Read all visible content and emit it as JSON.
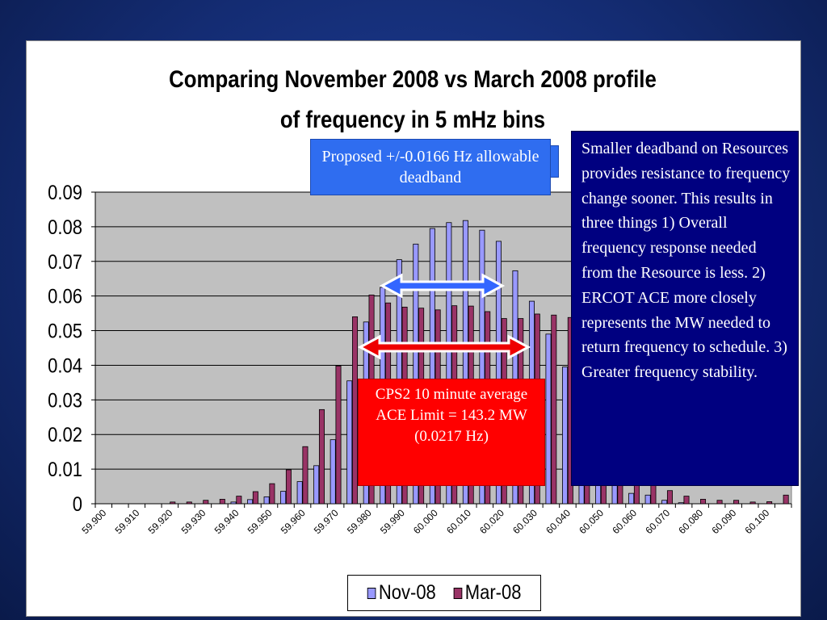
{
  "colors": {
    "nov": "#9999ff",
    "mar": "#993366",
    "plot_bg": "#c0c0c0",
    "blue_box": "#2f6df0",
    "red_box": "#ff0000",
    "navy_box": "#000080"
  },
  "chart_data": {
    "type": "bar",
    "title": "Comparing November 2008 vs March 2008 profile of frequency in 5 mHz bins",
    "title_lines": [
      "Comparing November 2008 vs March 2008 profile",
      "of frequency in 5 mHz bins"
    ],
    "xlabel": "",
    "ylabel": "",
    "ylim": [
      0,
      0.09
    ],
    "yticks": [
      "0",
      "0.01",
      "0.02",
      "0.03",
      "0.04",
      "0.05",
      "0.06",
      "0.07",
      "0.08",
      "0.09"
    ],
    "grid": true,
    "legend_position": "bottom",
    "x_tick_labels": [
      "59.900",
      "59.910",
      "59.920",
      "59.930",
      "59.940",
      "59.950",
      "59.960",
      "59.970",
      "59.980",
      "59.990",
      "60.000",
      "60.010",
      "60.020",
      "60.030",
      "60.040",
      "60.050",
      "60.060",
      "60.070",
      "60.080",
      "60.090",
      "60.100"
    ],
    "categories": [
      "59.900",
      "59.905",
      "59.910",
      "59.915",
      "59.920",
      "59.925",
      "59.930",
      "59.935",
      "59.940",
      "59.945",
      "59.950",
      "59.955",
      "59.960",
      "59.965",
      "59.970",
      "59.975",
      "59.980",
      "59.985",
      "59.990",
      "59.995",
      "60.000",
      "60.005",
      "60.010",
      "60.015",
      "60.020",
      "60.025",
      "60.030",
      "60.035",
      "60.040",
      "60.045",
      "60.050",
      "60.055",
      "60.060",
      "60.065",
      "60.070",
      "60.075",
      "60.080",
      "60.085",
      "60.090",
      "60.095",
      "60.100",
      "60.105"
    ],
    "series": [
      {
        "name": "Nov-08",
        "values": [
          0,
          0,
          0,
          0,
          0,
          0,
          0,
          0,
          0.0005,
          0.0012,
          0.002,
          0.0036,
          0.0064,
          0.011,
          0.0185,
          0.0355,
          0.0525,
          0.0625,
          0.0705,
          0.075,
          0.0795,
          0.0812,
          0.0818,
          0.079,
          0.0758,
          0.0673,
          0.0585,
          0.049,
          0.0395,
          0.0225,
          0.012,
          0.006,
          0.003,
          0.0025,
          0.001,
          0.0003,
          0,
          0,
          0,
          0,
          0,
          0
        ]
      },
      {
        "name": "Mar-08",
        "values": [
          0,
          0,
          0,
          0,
          0.0005,
          0.0005,
          0.001,
          0.0013,
          0.0022,
          0.0035,
          0.0058,
          0.0098,
          0.0165,
          0.0272,
          0.0398,
          0.054,
          0.0603,
          0.058,
          0.0568,
          0.0565,
          0.056,
          0.0572,
          0.0571,
          0.0555,
          0.0535,
          0.0535,
          0.0548,
          0.0545,
          0.0538,
          0.0395,
          0.027,
          0.0145,
          0.0078,
          0.0055,
          0.0038,
          0.0022,
          0.0013,
          0.001,
          0.001,
          0.0005,
          0.0006,
          0.0025
        ]
      }
    ]
  },
  "callouts": {
    "deadband": "Proposed +/-0.0166 Hz allowable deadband",
    "cps2": "CPS2 10 minute average ACE Limit = 143.2 MW (0.0217 Hz)",
    "smaller_deadband": "Smaller deadband on Resources provides resistance to frequency change sooner.  This results in three things 1) Overall frequency response needed from the Resource is less.  2) ERCOT ACE more closely represents the MW needed to return frequency to schedule.  3) Greater frequency stability."
  }
}
